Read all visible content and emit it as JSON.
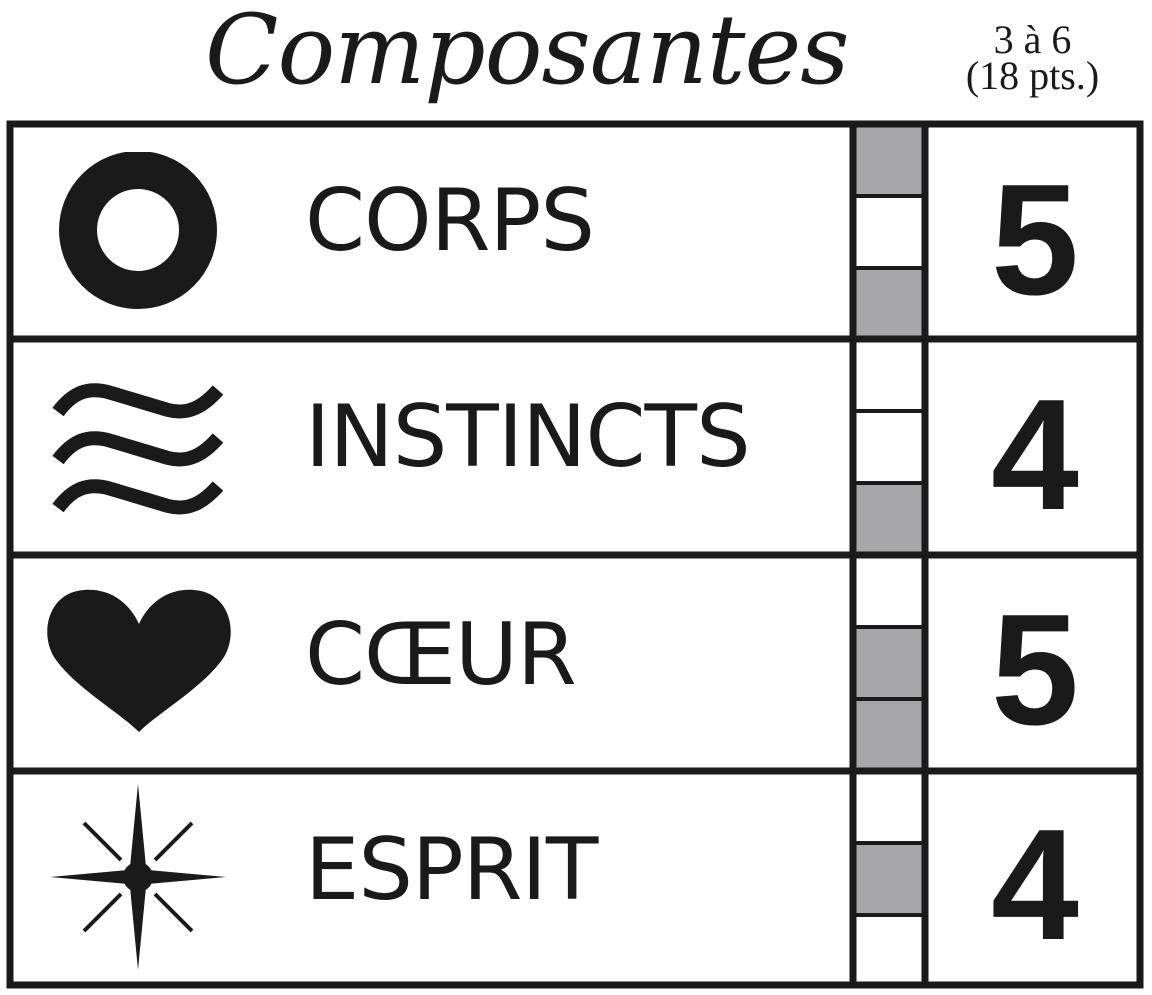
{
  "header": {
    "title": "Composantes",
    "range_line1": "3 à 6",
    "range_line2": "(18 pts.)"
  },
  "colors": {
    "ink": "#1a1a1a",
    "filled_pip": "#a7a7aa",
    "paper": "#ffffff"
  },
  "rows": [
    {
      "icon": "ring-icon",
      "label": "CORPS",
      "value": "5",
      "pips": [
        true,
        false,
        true
      ]
    },
    {
      "icon": "waves-icon",
      "label": "INSTINCTS",
      "value": "4",
      "pips": [
        false,
        false,
        true
      ]
    },
    {
      "icon": "heart-icon",
      "label": "CŒUR",
      "value": "5",
      "pips": [
        false,
        true,
        true
      ]
    },
    {
      "icon": "star-burst-icon",
      "label": "ESPRIT",
      "value": "4",
      "pips": [
        false,
        true,
        false
      ]
    }
  ]
}
